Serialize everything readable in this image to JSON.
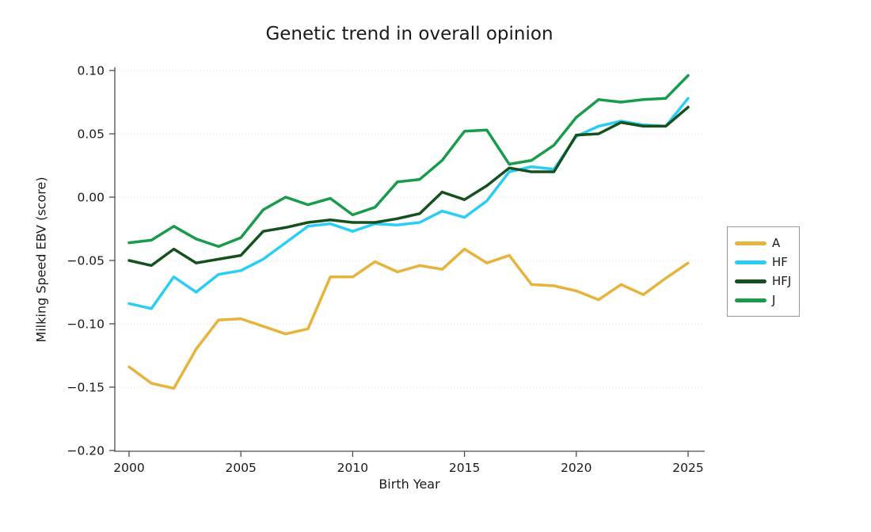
{
  "chart_data": {
    "type": "line",
    "title": "Genetic trend in overall opinion",
    "xlabel": "Birth Year",
    "ylabel": "Milking Speed EBV (score)",
    "x": [
      2000,
      2001,
      2002,
      2003,
      2004,
      2005,
      2006,
      2007,
      2008,
      2009,
      2010,
      2011,
      2012,
      2013,
      2014,
      2015,
      2016,
      2017,
      2018,
      2019,
      2020,
      2021,
      2022,
      2023,
      2024,
      2025
    ],
    "series": [
      {
        "name": "A",
        "color": "#e6b33d",
        "values": [
          -0.134,
          -0.147,
          -0.151,
          -0.12,
          -0.097,
          -0.096,
          -0.102,
          -0.108,
          -0.104,
          -0.063,
          -0.063,
          -0.051,
          -0.059,
          -0.054,
          -0.057,
          -0.041,
          -0.052,
          -0.046,
          -0.069,
          -0.07,
          -0.074,
          -0.081,
          -0.069,
          -0.077,
          -0.064,
          -0.052
        ]
      },
      {
        "name": "HF",
        "color": "#2bcdf5",
        "values": [
          -0.084,
          -0.088,
          -0.063,
          -0.075,
          -0.061,
          -0.058,
          -0.049,
          -0.036,
          -0.023,
          -0.021,
          -0.027,
          -0.021,
          -0.022,
          -0.02,
          -0.011,
          -0.016,
          -0.003,
          0.02,
          0.024,
          0.022,
          0.048,
          0.056,
          0.06,
          0.057,
          0.056,
          0.078
        ]
      },
      {
        "name": "HFJ",
        "color": "#15511e",
        "values": [
          -0.05,
          -0.054,
          -0.041,
          -0.052,
          -0.049,
          -0.046,
          -0.027,
          -0.024,
          -0.02,
          -0.018,
          -0.02,
          -0.02,
          -0.017,
          -0.013,
          0.004,
          -0.002,
          0.009,
          0.023,
          0.02,
          0.02,
          0.049,
          0.05,
          0.059,
          0.056,
          0.056,
          0.071
        ]
      },
      {
        "name": "J",
        "color": "#189c4b",
        "values": [
          -0.036,
          -0.034,
          -0.023,
          -0.033,
          -0.039,
          -0.032,
          -0.01,
          0.0,
          -0.006,
          -0.001,
          -0.014,
          -0.008,
          0.012,
          0.014,
          0.029,
          0.052,
          0.053,
          0.026,
          0.029,
          0.041,
          0.063,
          0.077,
          0.075,
          0.077,
          0.078,
          0.096
        ]
      }
    ],
    "xticks": [
      2000,
      2005,
      2010,
      2015,
      2020,
      2025
    ],
    "yticks": [
      0.1,
      0.05,
      0.0,
      -0.05,
      -0.1,
      -0.15,
      -0.2
    ],
    "ylim": [
      -0.2,
      0.1
    ],
    "xlim": [
      1999.4,
      2025.75
    ],
    "grid": "horizontal-dotted",
    "legend_position": "right",
    "legend_labels": [
      "A",
      "HF",
      "HFJ",
      "J"
    ]
  },
  "style_colors": {
    "spine": "#4d4d4d",
    "gridline": "#dcdcdc",
    "text": "#1a1a1a",
    "legend_border": "#9a9a9a",
    "background": "#ffffff"
  }
}
